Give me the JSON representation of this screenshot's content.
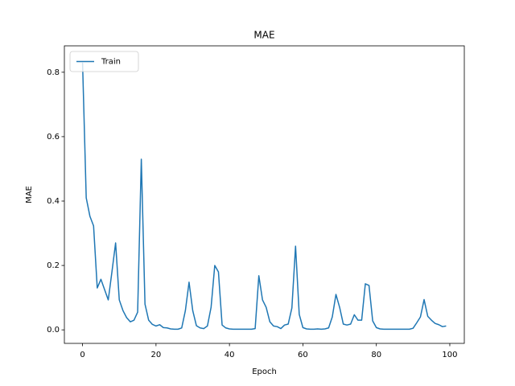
{
  "chart_data": {
    "type": "line",
    "title": "MAE",
    "x_label": "Epoch",
    "y_label": "MAE",
    "x": [
      0,
      1,
      2,
      3,
      4,
      5,
      6,
      7,
      8,
      9,
      10,
      11,
      12,
      13,
      14,
      15,
      16,
      17,
      18,
      19,
      20,
      21,
      22,
      23,
      24,
      25,
      26,
      27,
      28,
      29,
      30,
      31,
      32,
      33,
      34,
      35,
      36,
      37,
      38,
      39,
      40,
      41,
      42,
      43,
      44,
      45,
      46,
      47,
      48,
      49,
      50,
      51,
      52,
      53,
      54,
      55,
      56,
      57,
      58,
      59,
      60,
      61,
      62,
      63,
      64,
      65,
      66,
      67,
      68,
      69,
      70,
      71,
      72,
      73,
      74,
      75,
      76,
      77,
      78,
      79,
      80,
      81,
      82,
      83,
      84,
      85,
      86,
      87,
      88,
      89,
      90,
      91,
      92,
      93,
      94,
      95,
      96,
      97,
      98,
      99
    ],
    "series": [
      {
        "name": "Train",
        "color": "#1f77b4",
        "values": [
          0.83,
          0.41,
          0.353,
          0.323,
          0.13,
          0.157,
          0.125,
          0.093,
          0.18,
          0.27,
          0.093,
          0.06,
          0.038,
          0.025,
          0.03,
          0.055,
          0.53,
          0.08,
          0.03,
          0.017,
          0.012,
          0.016,
          0.007,
          0.006,
          0.003,
          0.002,
          0.002,
          0.006,
          0.06,
          0.148,
          0.06,
          0.013,
          0.006,
          0.004,
          0.012,
          0.07,
          0.2,
          0.18,
          0.015,
          0.006,
          0.003,
          0.002,
          0.002,
          0.002,
          0.002,
          0.002,
          0.002,
          0.004,
          0.168,
          0.093,
          0.07,
          0.025,
          0.012,
          0.01,
          0.004,
          0.015,
          0.018,
          0.068,
          0.26,
          0.048,
          0.007,
          0.003,
          0.002,
          0.002,
          0.003,
          0.002,
          0.003,
          0.006,
          0.04,
          0.11,
          0.07,
          0.018,
          0.015,
          0.018,
          0.047,
          0.03,
          0.03,
          0.143,
          0.138,
          0.028,
          0.007,
          0.003,
          0.002,
          0.002,
          0.002,
          0.002,
          0.002,
          0.002,
          0.002,
          0.002,
          0.005,
          0.022,
          0.04,
          0.094,
          0.042,
          0.03,
          0.02,
          0.016,
          0.01,
          0.012
        ]
      }
    ],
    "xlim": [
      -4.95,
      103.95
    ],
    "xticks": [
      0,
      20,
      40,
      60,
      80,
      100
    ],
    "ylim": [
      -0.042,
      0.882
    ],
    "yticks": [
      {
        "value": 0,
        "label": "0.0"
      },
      0.2,
      0.4,
      0.6,
      0.8
    ],
    "legend": "upper left"
  }
}
